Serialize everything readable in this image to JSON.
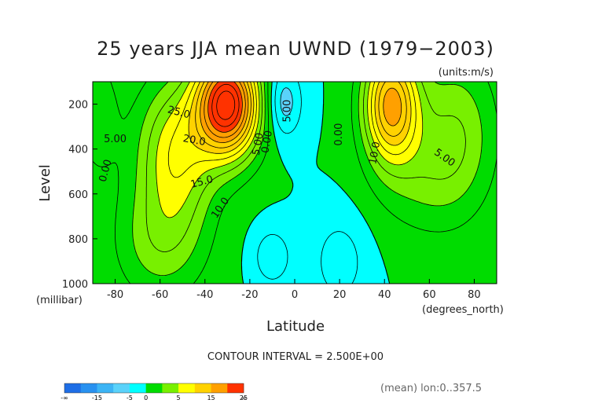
{
  "chart_data": {
    "type": "heatmap",
    "title": "25 years JJA mean UWND (1979−2003)",
    "units_label": "(units:m/s)",
    "xlabel": "Latitude",
    "xunit_label": "(degrees_north)",
    "ylabel": "Level",
    "yunit_label": "(millibar)",
    "xlim": [
      -90,
      90
    ],
    "ylim": [
      1000,
      100
    ],
    "y_reversed": true,
    "x_ticks": [
      -80,
      -60,
      -40,
      -20,
      0,
      20,
      40,
      60,
      80
    ],
    "y_ticks": [
      200,
      400,
      600,
      800,
      1000
    ],
    "contour_interval_text": "CONTOUR INTERVAL = 2.500E+00",
    "footer_text": "(mean) lon:0..357.5",
    "colorbar": {
      "labels": [
        "-∞",
        "-15",
        "-5",
        "0",
        "5",
        "15",
        "25",
        "∞"
      ],
      "bounds": [
        -20,
        -15,
        -10,
        -5,
        0,
        5,
        10,
        15,
        20,
        25,
        30
      ],
      "colors": [
        "#1e6ee6",
        "#2891f0",
        "#3cb4f5",
        "#5ad2fa",
        "#00ffff",
        "#00dc00",
        "#78f000",
        "#ffff00",
        "#ffd200",
        "#ffa000",
        "#ff3200"
      ]
    },
    "jets": [
      {
        "lat": -30,
        "level": 200,
        "max": 31
      },
      {
        "lat": 43,
        "level": 200,
        "max": 21
      },
      {
        "lat": -5,
        "level": 180,
        "min": -7
      }
    ],
    "contour_labels": [
      {
        "text": "25.0",
        "lat": -52,
        "level": 250,
        "rot": 15
      },
      {
        "text": "20.0",
        "lat": -45,
        "level": 375,
        "rot": 10
      },
      {
        "text": "15.0",
        "lat": -41,
        "level": 560,
        "rot": -15
      },
      {
        "text": "10.0",
        "lat": -32,
        "level": 670,
        "rot": -55
      },
      {
        "text": "5.00",
        "lat": -80,
        "level": 370,
        "rot": 0
      },
      {
        "text": "0.00",
        "lat": -83,
        "level": 500,
        "rot": -75
      },
      {
        "text": "5.00",
        "lat": -15,
        "level": 380,
        "rot": -80
      },
      {
        "text": "0.00",
        "lat": -11,
        "level": 370,
        "rot": -80
      },
      {
        "text": "5.00",
        "lat": -2,
        "level": 230,
        "rot": -90
      },
      {
        "text": "0.00",
        "lat": 21,
        "level": 335,
        "rot": -90
      },
      {
        "text": "10.0",
        "lat": 37,
        "level": 420,
        "rot": -80
      },
      {
        "text": "5.00",
        "lat": 66,
        "level": 450,
        "rot": 35
      }
    ]
  }
}
